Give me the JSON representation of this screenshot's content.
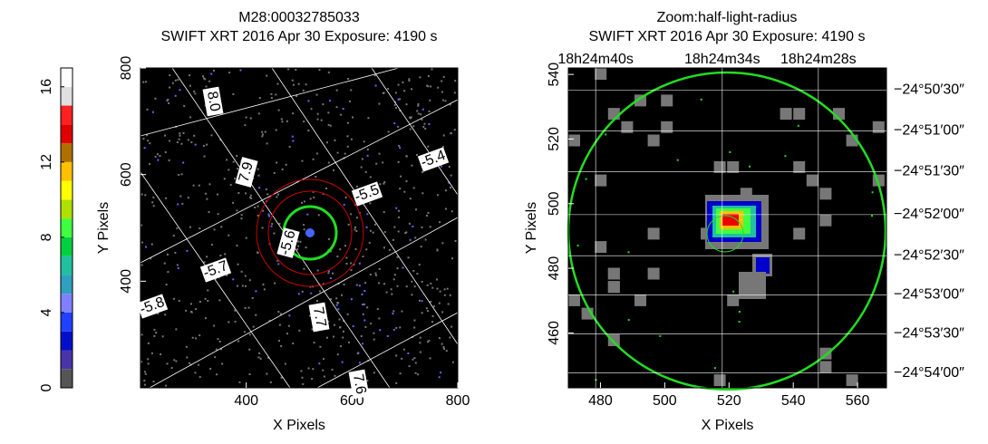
{
  "chart_data": [
    {
      "type": "image",
      "title": "M28:00032785033",
      "subtitle": "SWIFT XRT   2016 Apr 30     Exposure: 4190 s",
      "xlabel": "X Pixels",
      "ylabel": "Y Pixels",
      "xlim": [
        200,
        800
      ],
      "ylim": [
        200,
        800
      ],
      "xticks": [
        400,
        600,
        800
      ],
      "yticks": [
        400,
        600,
        800
      ],
      "annotations": [
        "8.0",
        "7.9",
        "-5.4",
        "-5.5",
        "-5.6",
        "-5.7",
        "-5.8",
        "7.7",
        "7.6"
      ],
      "colorbar": {
        "ylim": [
          0,
          17
        ],
        "yticks": [
          0,
          4,
          8,
          12,
          16
        ],
        "colors": [
          "#555555",
          "#4a34a8",
          "#0010c8",
          "#2040ff",
          "#8080ff",
          "#30a0c0",
          "#20c0a0",
          "#00d040",
          "#40ff40",
          "#b0e000",
          "#ffff00",
          "#ffc000",
          "#b07000",
          "#e00000",
          "#ff2020",
          "#e0e0e0",
          "#ffffff"
        ]
      }
    },
    {
      "type": "image",
      "title": "Zoom:half-light-radius",
      "subtitle": "SWIFT XRT   2016 Apr 30     Exposure: 4190 s",
      "xlabel": "X Pixels",
      "ylabel": "Y Pixels",
      "xlim": [
        470,
        569
      ],
      "ylim": [
        443,
        542
      ],
      "xticks": [
        480,
        500,
        520,
        540,
        560
      ],
      "yticks": [
        460,
        480,
        500,
        520,
        540
      ],
      "x2ticks": [
        {
          "value": 478.5,
          "label": "18h24m40s"
        },
        {
          "value": 517.9,
          "label": "18h24m34s"
        },
        {
          "value": 547.8,
          "label": "18h24m28s"
        }
      ],
      "y2ticks": [
        {
          "value": 535.2,
          "label": "−24°50′30″"
        },
        {
          "value": 522.5,
          "label": "−24°51′00″"
        },
        {
          "value": 509.9,
          "label": "−24°51′30″"
        },
        {
          "value": 496.6,
          "label": "−24°52′00″"
        },
        {
          "value": 483.9,
          "label": "−24°52′30″"
        },
        {
          "value": 471.8,
          "label": "−24°53′00″"
        },
        {
          "value": 459.7,
          "label": "−24°53′30″"
        },
        {
          "value": 447.6,
          "label": "−24°54′00″"
        }
      ]
    }
  ]
}
